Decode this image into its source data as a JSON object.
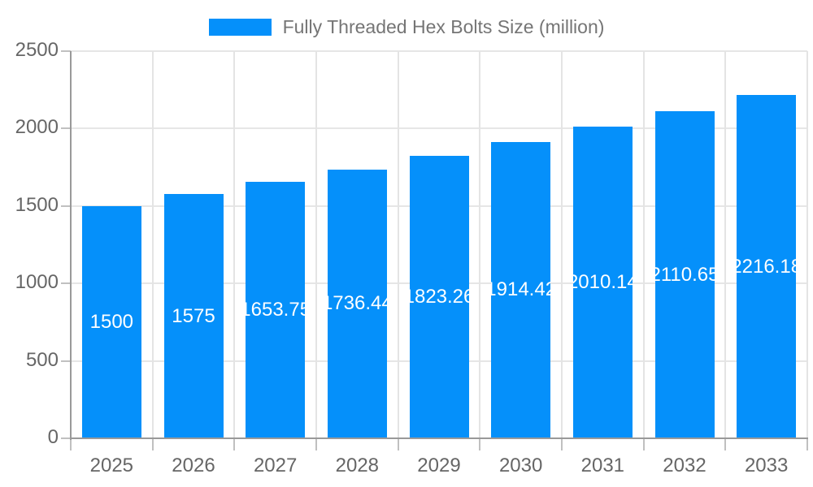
{
  "legend": {
    "label": "Fully Threaded Hex Bolts Size (million)",
    "swatch_color": "#0590fa"
  },
  "chart_data": {
    "type": "bar",
    "title": "Fully Threaded Hex Bolts Size (million)",
    "categories": [
      "2025",
      "2026",
      "2027",
      "2028",
      "2029",
      "2030",
      "2031",
      "2032",
      "2033"
    ],
    "values": [
      1500,
      1575,
      1653.75,
      1736.44,
      1823.26,
      1914.42,
      2010.14,
      2110.65,
      2216.18
    ],
    "value_labels": [
      "1500",
      "1575",
      "1653.75",
      "1736.44",
      "1823.26",
      "1914.42",
      "2010.14",
      "2110.65",
      "2216.18"
    ],
    "xlabel": "",
    "ylabel": "",
    "ylim": [
      0,
      2500
    ],
    "yticks": [
      0,
      500,
      1000,
      1500,
      2000,
      2500
    ],
    "grid": true,
    "legend_position": "top-center",
    "bar_color": "#0590fa",
    "value_label_color": "#ffffff",
    "axis_color": "#999999",
    "gridline_color": "#e6e6e6",
    "tick_label_color": "#666666",
    "title_color": "#757575"
  }
}
